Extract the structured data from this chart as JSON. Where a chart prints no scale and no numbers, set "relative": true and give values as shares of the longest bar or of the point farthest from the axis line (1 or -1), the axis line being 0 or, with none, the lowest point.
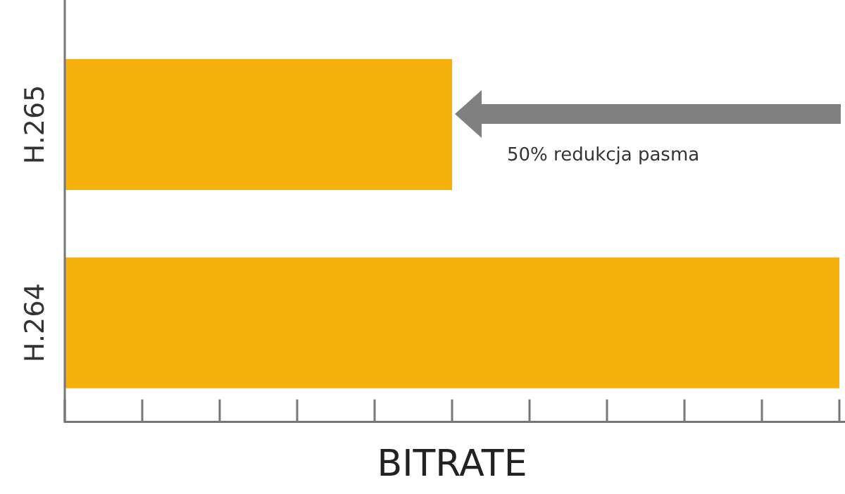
{
  "chart_data": {
    "type": "bar",
    "orientation": "horizontal",
    "relative": true,
    "categories": [
      "H.265",
      "H.264"
    ],
    "values": [
      0.5,
      1
    ],
    "color": "#f6b10d",
    "xlabel": "BITRATE",
    "annotations": [
      "50% redukcja pasma"
    ],
    "grid": false,
    "legend": false
  }
}
